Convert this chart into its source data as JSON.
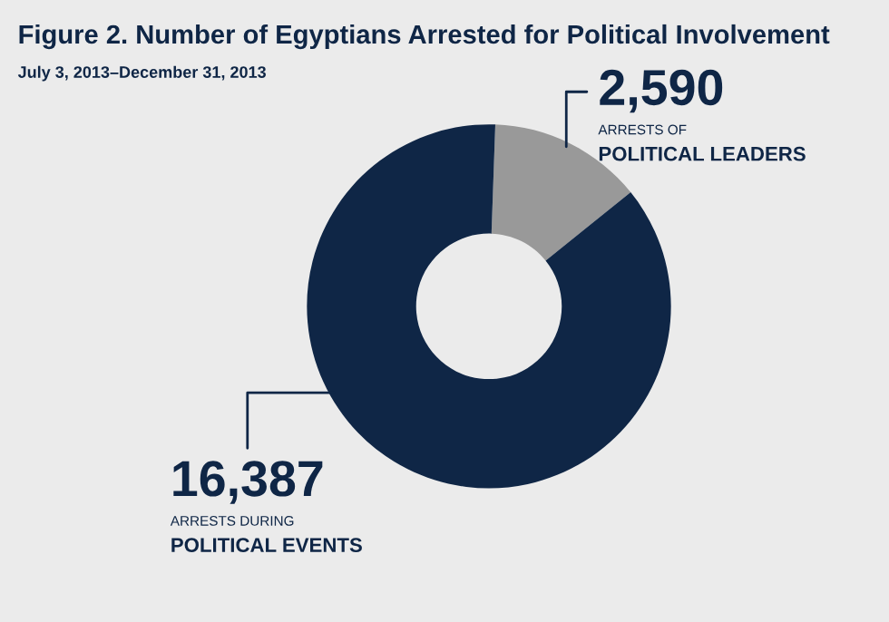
{
  "chart_data": {
    "type": "donut",
    "title": "Figure 2. Number of Egyptians Arrested for Political Involvement",
    "subtitle": "July 3, 2013–December 31, 2013",
    "categories": [
      "ARRESTS OF POLITICAL LEADERS",
      "ARRESTS DURING POLITICAL EVENTS"
    ],
    "values": [
      2590,
      16387
    ],
    "value_labels": [
      "2,590",
      "16,387"
    ],
    "colors": [
      "#999999",
      "#0f2646"
    ]
  }
}
